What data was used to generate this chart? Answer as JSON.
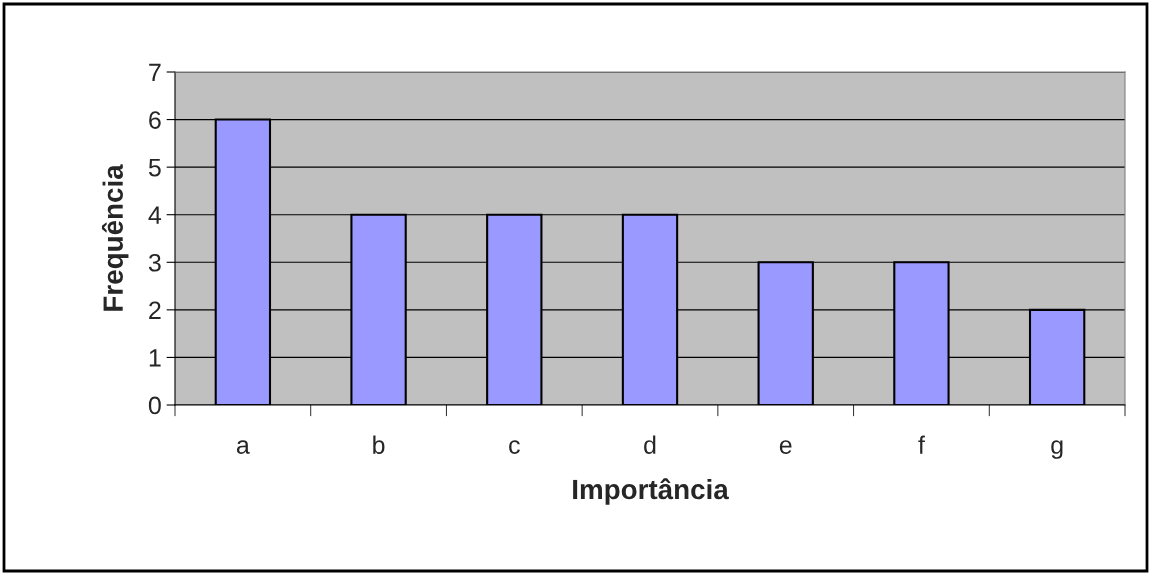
{
  "chart_data": {
    "type": "bar",
    "xlabel": "Importância",
    "ylabel": "Frequência",
    "categories": [
      "a",
      "b",
      "c",
      "d",
      "e",
      "f",
      "g"
    ],
    "values": [
      6,
      4,
      4,
      4,
      3,
      3,
      2
    ],
    "color": "#9999ff",
    "ylim": [
      0,
      7
    ],
    "yticks": [
      0,
      1,
      2,
      3,
      4,
      5,
      6,
      7
    ],
    "grid": "y"
  }
}
